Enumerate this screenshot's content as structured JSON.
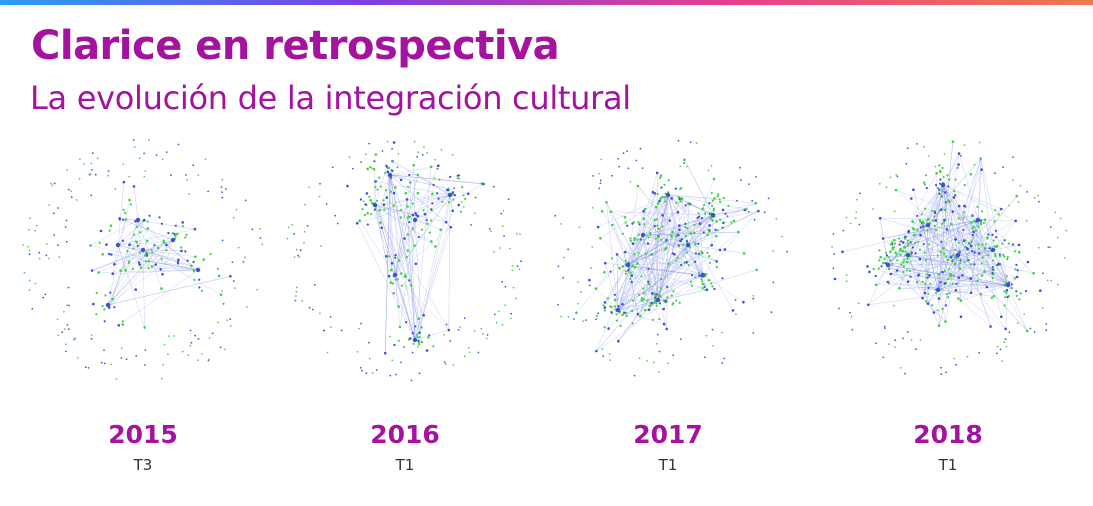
{
  "header": {
    "title": "Clarice en retrospectiva",
    "subtitle": "La evolución de la integración cultural"
  },
  "colors": {
    "accent": "#a4129f",
    "node_blue": "#3b4fd8",
    "node_green": "#3fd23f",
    "edge": "#8b98e6",
    "gradient": [
      "#2a9df4",
      "#7b3fe4",
      "#e83e8c",
      "#f0784a"
    ]
  },
  "panels": [
    {
      "year": "2015",
      "period": "T3",
      "icon": "network-graph-icon"
    },
    {
      "year": "2016",
      "period": "T1",
      "icon": "network-graph-icon"
    },
    {
      "year": "2017",
      "period": "T1",
      "icon": "network-graph-icon"
    },
    {
      "year": "2018",
      "period": "T1",
      "icon": "network-graph-icon"
    }
  ]
}
